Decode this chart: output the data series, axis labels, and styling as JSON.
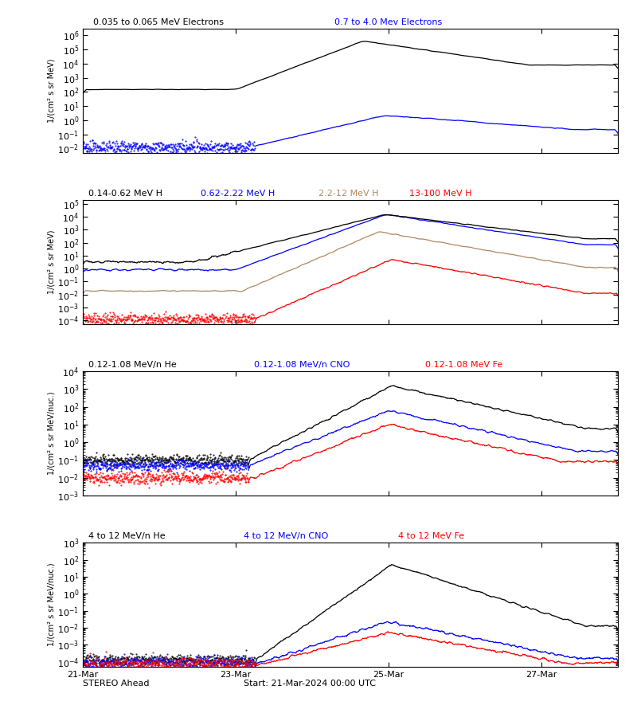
{
  "title_panel1_black": "0.035 to 0.065 MeV Electrons",
  "title_panel1_blue": "0.7 to 4.0 Mev Electrons",
  "title_panel2_black": "0.14-0.62 MeV H",
  "title_panel2_blue": "0.62-2.22 MeV H",
  "title_panel2_tan": "2.2-12 MeV H",
  "title_panel2_red": "13-100 MeV H",
  "title_panel3_black": "0.12-1.08 MeV/n He",
  "title_panel3_blue": "0.12-1.08 MeV/n CNO",
  "title_panel3_red": "0.12-1.08 MeV Fe",
  "title_panel4_black": "4 to 12 MeV/n He",
  "title_panel4_blue": "4 to 12 MeV/n CNO",
  "title_panel4_red": "4 to 12 MeV Fe",
  "xlabel_left": "STEREO Ahead",
  "xlabel_center": "Start: 21-Mar-2024 00:00 UTC",
  "xtick_labels": [
    "21-Mar",
    "23-Mar",
    "25-Mar",
    "27-Mar"
  ],
  "ylabel1": "1/(cm² s sr MeV)",
  "ylabel2": "1/(cm² s sr MeV)",
  "ylabel3": "1/(cm² s sr MeV/nuc.)",
  "ylabel4": "1/(cm² s sr MeV/nuc.)",
  "ylim1": [
    0.005,
    3000000.0
  ],
  "ylim2": [
    5e-05,
    200000.0
  ],
  "ylim3": [
    0.001,
    10000.0
  ],
  "ylim4": [
    5e-05,
    1000.0
  ],
  "color_black": "#000000",
  "color_blue": "#0000FF",
  "color_tan": "#B08860",
  "color_red": "#FF0000",
  "bg_color": "#FFFFFF",
  "figsize": [
    8.0,
    9.0
  ],
  "dpi": 100
}
